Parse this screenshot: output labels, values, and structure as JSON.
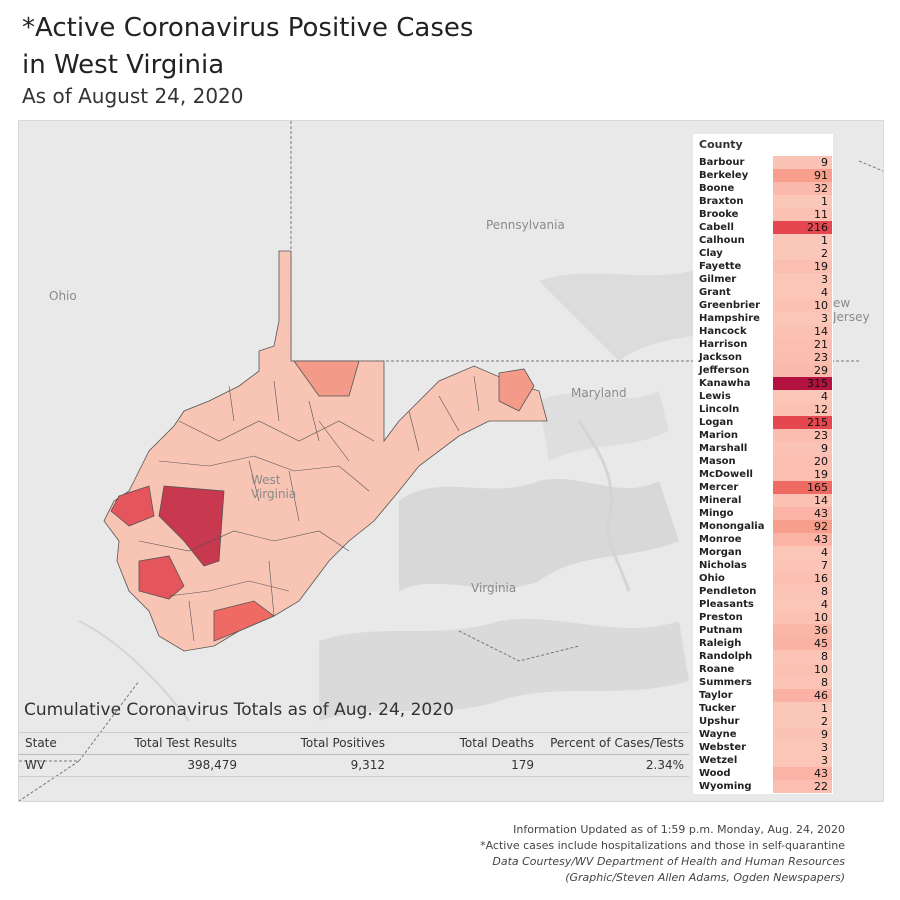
{
  "header": {
    "title_line1": "*Active Coronavirus Positive Cases",
    "title_line2": "in West Virginia",
    "subtitle": "As of August 24, 2020"
  },
  "map": {
    "labels": {
      "pennsylvania": "Pennsylvania",
      "ohio": "Ohio",
      "maryland": "Maryland",
      "virginia": "Virginia",
      "west_virginia": "West Virginia",
      "new_jersey": "ew Jersey"
    },
    "colors": {
      "background": "#e9e9e9",
      "state_low": "#f8c4b4",
      "state_mid": "#f49a88",
      "state_high": "#e4555c",
      "state_max": "#c8384f",
      "border": "#555555"
    }
  },
  "county_panel": {
    "header": "County",
    "items": [
      {
        "name": "Barbour",
        "value": "9",
        "color": "#fbc3b5"
      },
      {
        "name": "Berkeley",
        "value": "91",
        "color": "#f79e8c"
      },
      {
        "name": "Boone",
        "value": "32",
        "color": "#fab9aa"
      },
      {
        "name": "Braxton",
        "value": "1",
        "color": "#fbc7b9"
      },
      {
        "name": "Brooke",
        "value": "11",
        "color": "#fbc2b4"
      },
      {
        "name": "Cabell",
        "value": "216",
        "color": "#e5464f"
      },
      {
        "name": "Calhoun",
        "value": "1",
        "color": "#fbc7b9"
      },
      {
        "name": "Clay",
        "value": "2",
        "color": "#fbc7b9"
      },
      {
        "name": "Fayette",
        "value": "19",
        "color": "#fbbfb1"
      },
      {
        "name": "Gilmer",
        "value": "3",
        "color": "#fbc6b8"
      },
      {
        "name": "Grant",
        "value": "4",
        "color": "#fbc6b8"
      },
      {
        "name": "Greenbrier",
        "value": "10",
        "color": "#fbc2b4"
      },
      {
        "name": "Hampshire",
        "value": "3",
        "color": "#fbc6b8"
      },
      {
        "name": "Hancock",
        "value": "14",
        "color": "#fbc1b3"
      },
      {
        "name": "Harrison",
        "value": "21",
        "color": "#fbbeb0"
      },
      {
        "name": "Jackson",
        "value": "23",
        "color": "#fbbdaf"
      },
      {
        "name": "Jefferson",
        "value": "29",
        "color": "#fabaab"
      },
      {
        "name": "Kanawha",
        "value": "315",
        "color": "#b3113f"
      },
      {
        "name": "Lewis",
        "value": "4",
        "color": "#fbc6b8"
      },
      {
        "name": "Lincoln",
        "value": "12",
        "color": "#fbc2b4"
      },
      {
        "name": "Logan",
        "value": "215",
        "color": "#e5474f"
      },
      {
        "name": "Marion",
        "value": "23",
        "color": "#fbbdaf"
      },
      {
        "name": "Marshall",
        "value": "9",
        "color": "#fbc3b5"
      },
      {
        "name": "Mason",
        "value": "20",
        "color": "#fbbeb0"
      },
      {
        "name": "McDowell",
        "value": "19",
        "color": "#fbbfb1"
      },
      {
        "name": "Mercer",
        "value": "165",
        "color": "#ee6a63"
      },
      {
        "name": "Mineral",
        "value": "14",
        "color": "#fbc1b3"
      },
      {
        "name": "Mingo",
        "value": "43",
        "color": "#fab3a4"
      },
      {
        "name": "Monongalia",
        "value": "92",
        "color": "#f79e8c"
      },
      {
        "name": "Monroe",
        "value": "43",
        "color": "#fab3a4"
      },
      {
        "name": "Morgan",
        "value": "4",
        "color": "#fbc6b8"
      },
      {
        "name": "Nicholas",
        "value": "7",
        "color": "#fbc4b6"
      },
      {
        "name": "Ohio",
        "value": "16",
        "color": "#fbc0b2"
      },
      {
        "name": "Pendleton",
        "value": "8",
        "color": "#fbc4b6"
      },
      {
        "name": "Pleasants",
        "value": "4",
        "color": "#fbc6b8"
      },
      {
        "name": "Preston",
        "value": "10",
        "color": "#fbc2b4"
      },
      {
        "name": "Putnam",
        "value": "36",
        "color": "#fab6a7"
      },
      {
        "name": "Raleigh",
        "value": "45",
        "color": "#f9b2a3"
      },
      {
        "name": "Randolph",
        "value": "8",
        "color": "#fbc4b6"
      },
      {
        "name": "Roane",
        "value": "10",
        "color": "#fbc2b4"
      },
      {
        "name": "Summers",
        "value": "8",
        "color": "#fbc4b6"
      },
      {
        "name": "Taylor",
        "value": "46",
        "color": "#f9b2a3"
      },
      {
        "name": "Tucker",
        "value": "1",
        "color": "#fbc7b9"
      },
      {
        "name": "Upshur",
        "value": "2",
        "color": "#fbc7b9"
      },
      {
        "name": "Wayne",
        "value": "9",
        "color": "#fbc3b5"
      },
      {
        "name": "Webster",
        "value": "3",
        "color": "#fbc6b8"
      },
      {
        "name": "Wetzel",
        "value": "3",
        "color": "#fbc6b8"
      },
      {
        "name": "Wood",
        "value": "43",
        "color": "#fab3a4"
      },
      {
        "name": "Wyoming",
        "value": "22",
        "color": "#fbbeb0"
      }
    ]
  },
  "totals": {
    "title": "Cumulative Coronavirus Totals as of Aug. 24, 2020",
    "columns": [
      "State",
      "Total Test Results",
      "Total Positives",
      "Total Deaths",
      "Percent of Cases/Tests"
    ],
    "row": {
      "state": "WV",
      "tests": "398,479",
      "positives": "9,312",
      "deaths": "179",
      "percent": "2.34%"
    }
  },
  "footer": {
    "line1": "Information Updated as of 1:59 p.m. Monday, Aug. 24, 2020",
    "line2": "*Active cases include hospitalizations and those in self-quarantine",
    "line3": "Data Courtesy/WV Department of Health and Human Resources",
    "line4": "(Graphic/Steven Allen Adams, Ogden Newspapers)"
  }
}
